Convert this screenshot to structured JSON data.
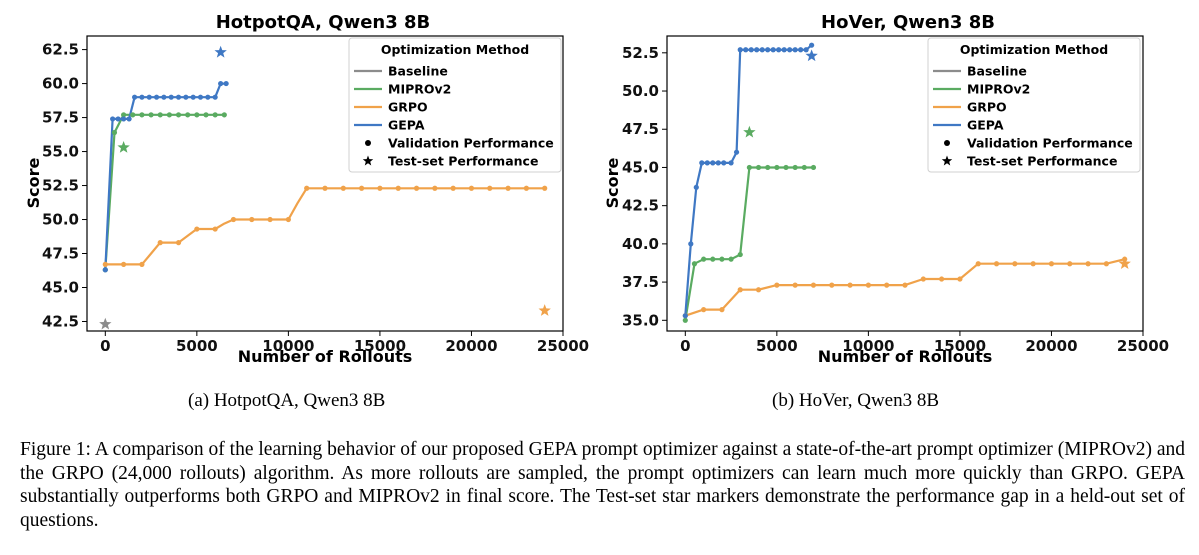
{
  "chart_data": [
    {
      "type": "line",
      "title": "HotpotQA, Qwen3 8B",
      "xlabel": "Number of Rollouts",
      "ylabel": "Score",
      "xlim": [
        -1000,
        25000
      ],
      "ylim": [
        41.8,
        63.5
      ],
      "xticks": [
        0,
        5000,
        10000,
        15000,
        20000,
        25000
      ],
      "yticks": [
        42.5,
        45.0,
        47.5,
        50.0,
        52.5,
        55.0,
        57.5,
        60.0,
        62.5
      ],
      "legend": {
        "title": "Optimization Method",
        "placement": "top-right",
        "entries": [
          "Baseline",
          "MIPROv2",
          "GRPO",
          "GEPA",
          "Validation Performance",
          "Test-set Performance"
        ]
      },
      "series": [
        {
          "name": "GRPO",
          "color": "#f0a24a",
          "x": [
            0,
            500,
            1000,
            1500,
            2000,
            2500,
            3000,
            3500,
            4000,
            4500,
            5000,
            5500,
            6000,
            6500,
            7000,
            7500,
            8000,
            8500,
            9000,
            9500,
            10000,
            10500,
            11000,
            11500,
            12000,
            12500,
            13000,
            13500,
            14000,
            14500,
            15000,
            15500,
            16000,
            16500,
            17000,
            17500,
            18000,
            18500,
            19000,
            19500,
            20000,
            20500,
            21000,
            21500,
            22000,
            22500,
            23000,
            23500,
            24000
          ],
          "y": [
            46.7,
            46.7,
            46.7,
            46.7,
            46.7,
            47.5,
            48.3,
            48.3,
            48.3,
            48.8,
            49.3,
            49.3,
            49.3,
            49.7,
            50.0,
            50.0,
            50.0,
            50.0,
            50.0,
            50.0,
            50.0,
            51.2,
            52.3,
            52.3,
            52.3,
            52.3,
            52.3,
            52.3,
            52.3,
            52.3,
            52.3,
            52.3,
            52.3,
            52.3,
            52.3,
            52.3,
            52.3,
            52.3,
            52.3,
            52.3,
            52.3,
            52.3,
            52.3,
            52.3,
            52.3,
            52.3,
            52.3,
            52.3,
            52.3
          ],
          "markers_x": [
            0,
            1000,
            2000,
            3000,
            4000,
            5000,
            6000,
            7000,
            8000,
            9000,
            10000,
            11000,
            12000,
            13000,
            14000,
            15000,
            16000,
            17000,
            18000,
            19000,
            20000,
            21000,
            22000,
            23000,
            24000
          ],
          "markers_y": [
            46.7,
            46.7,
            46.7,
            48.3,
            48.3,
            49.3,
            49.3,
            50.0,
            50.0,
            50.0,
            50.0,
            52.3,
            52.3,
            52.3,
            52.3,
            52.3,
            52.3,
            52.3,
            52.3,
            52.3,
            52.3,
            52.3,
            52.3,
            52.3,
            52.3
          ],
          "test": [
            24000,
            43.3
          ]
        },
        {
          "name": "MIPROv2",
          "color": "#5aab61",
          "x": [
            0,
            500,
            1000,
            1500,
            2000,
            2500,
            3000,
            3500,
            4000,
            4500,
            5000,
            5500,
            6000,
            6500
          ],
          "y": [
            46.3,
            56.4,
            57.7,
            57.7,
            57.7,
            57.7,
            57.7,
            57.7,
            57.7,
            57.7,
            57.7,
            57.7,
            57.7,
            57.7
          ],
          "test": [
            1000,
            55.3
          ]
        },
        {
          "name": "GEPA",
          "color": "#3f78c4",
          "x": [
            0,
            400,
            700,
            1000,
            1300,
            1600,
            2000,
            2400,
            2800,
            3200,
            3600,
            4000,
            4400,
            4800,
            5200,
            5600,
            6000,
            6300,
            6600
          ],
          "y": [
            46.3,
            57.4,
            57.4,
            57.4,
            57.4,
            59.0,
            59.0,
            59.0,
            59.0,
            59.0,
            59.0,
            59.0,
            59.0,
            59.0,
            59.0,
            59.0,
            59.0,
            60.0,
            60.0
          ],
          "test": [
            6300,
            62.3
          ]
        },
        {
          "name": "Baseline",
          "color": "#8c8c8c",
          "x": [],
          "y": [],
          "test": [
            0,
            42.3
          ]
        }
      ]
    },
    {
      "type": "line",
      "title": "HoVer, Qwen3 8B",
      "xlabel": "Number of Rollouts",
      "ylabel": "Score",
      "xlim": [
        -1000,
        25000
      ],
      "ylim": [
        34.3,
        53.6
      ],
      "xticks": [
        0,
        5000,
        10000,
        15000,
        20000,
        25000
      ],
      "yticks": [
        35.0,
        37.5,
        40.0,
        42.5,
        45.0,
        47.5,
        50.0,
        52.5
      ],
      "legend": {
        "title": "Optimization Method",
        "placement": "top-right",
        "entries": [
          "Baseline",
          "MIPROv2",
          "GRPO",
          "GEPA",
          "Validation Performance",
          "Test-set Performance"
        ]
      },
      "series": [
        {
          "name": "GRPO",
          "color": "#f0a24a",
          "x": [
            0,
            1000,
            2000,
            3000,
            4000,
            5000,
            6000,
            7000,
            8000,
            9000,
            10000,
            11000,
            12000,
            13000,
            14000,
            15000,
            16000,
            17000,
            18000,
            19000,
            20000,
            21000,
            22000,
            23000,
            24000
          ],
          "y": [
            35.3,
            35.7,
            35.7,
            37.0,
            37.0,
            37.3,
            37.3,
            37.3,
            37.3,
            37.3,
            37.3,
            37.3,
            37.3,
            37.7,
            37.7,
            37.7,
            38.7,
            38.7,
            38.7,
            38.7,
            38.7,
            38.7,
            38.7,
            38.7,
            39.0
          ],
          "markers_x": [
            0,
            1000,
            2000,
            3000,
            4000,
            5000,
            6000,
            7000,
            8000,
            9000,
            10000,
            11000,
            12000,
            13000,
            14000,
            15000,
            16000,
            17000,
            18000,
            19000,
            20000,
            21000,
            22000,
            23000,
            24000
          ],
          "markers_y": [
            35.3,
            35.7,
            35.7,
            37.0,
            37.0,
            37.3,
            37.3,
            37.3,
            37.3,
            37.3,
            37.3,
            37.3,
            37.3,
            37.7,
            37.7,
            37.7,
            38.7,
            38.7,
            38.7,
            38.7,
            38.7,
            38.7,
            38.7,
            38.7,
            39.0
          ],
          "test": [
            24000,
            38.7
          ]
        },
        {
          "name": "MIPROv2",
          "color": "#5aab61",
          "x": [
            0,
            500,
            1000,
            1500,
            2000,
            2500,
            3000,
            3500,
            4000,
            4500,
            5000,
            5500,
            6000,
            6500,
            7000
          ],
          "y": [
            35.0,
            38.7,
            39.0,
            39.0,
            39.0,
            39.0,
            39.3,
            45.0,
            45.0,
            45.0,
            45.0,
            45.0,
            45.0,
            45.0,
            45.0
          ],
          "test": [
            3500,
            47.3
          ]
        },
        {
          "name": "GEPA",
          "color": "#3f78c4",
          "x": [
            0,
            300,
            600,
            900,
            1200,
            1500,
            1800,
            2100,
            2500,
            2800,
            3000,
            3300,
            3600,
            3900,
            4200,
            4500,
            4800,
            5100,
            5400,
            5700,
            6000,
            6300,
            6600,
            6900
          ],
          "y": [
            35.3,
            40.0,
            43.7,
            45.3,
            45.3,
            45.3,
            45.3,
            45.3,
            45.3,
            46.0,
            52.7,
            52.7,
            52.7,
            52.7,
            52.7,
            52.7,
            52.7,
            52.7,
            52.7,
            52.7,
            52.7,
            52.7,
            52.7,
            53.0
          ],
          "test": [
            6900,
            52.3
          ]
        },
        {
          "name": "Baseline",
          "color": "#8c8c8c",
          "x": [],
          "y": [],
          "test": null
        }
      ]
    }
  ],
  "subcaptions": [
    "(a) HotpotQA, Qwen3 8B",
    "(b) HoVer, Qwen3 8B"
  ],
  "caption": "Figure 1: A comparison of the learning behavior of our proposed GEPA prompt optimizer against a state-of-the-art prompt optimizer (MIPROv2) and the GRPO (24,000 rollouts) algorithm. As more rollouts are sampled, the prompt optimizers can learn much more quickly than GRPO. GEPA substantially outperforms both GRPO and MIPROv2 in final score. The Test-set star markers demonstrate the performance gap in a held-out set of questions."
}
